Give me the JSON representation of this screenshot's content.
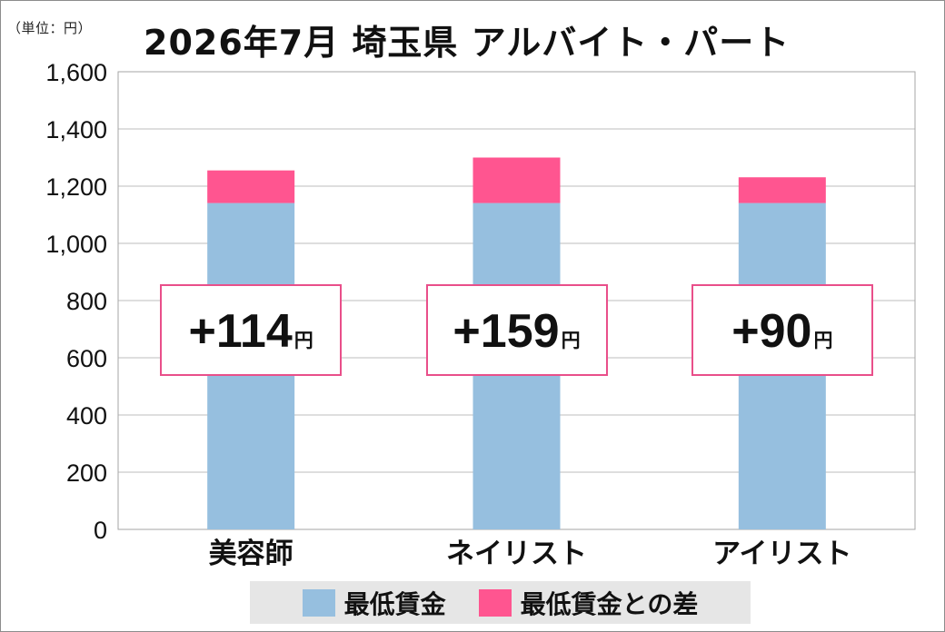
{
  "unit_label": "（単位：円）",
  "chart_data": {
    "type": "bar",
    "stacked": true,
    "title": "2026年7月  埼玉県 アルバイト・パート",
    "categories": [
      "美容師",
      "ネイリスト",
      "アイリスト"
    ],
    "series": [
      {
        "name": "最低賃金",
        "values": [
          1141,
          1141,
          1141
        ],
        "color": "#96bfdf"
      },
      {
        "name": "最低賃金との差",
        "values": [
          114,
          159,
          90
        ],
        "color": "#ff5590"
      }
    ],
    "ylim": [
      0,
      1600
    ],
    "yticks": [
      0,
      200,
      400,
      600,
      800,
      1000,
      1200,
      1400,
      1600
    ],
    "ytick_labels": [
      "0",
      "200",
      "400",
      "600",
      "800",
      "1,000",
      "1,200",
      "1,400",
      "1,600"
    ],
    "grid": true,
    "legend_position": "bottom",
    "xlabel": "",
    "ylabel": ""
  },
  "annotations": [
    {
      "main": "+114",
      "unit": "円"
    },
    {
      "main": "+159",
      "unit": "円"
    },
    {
      "main": "+90",
      "unit": "円"
    }
  ],
  "annotation_border_color": "#e94f8a"
}
